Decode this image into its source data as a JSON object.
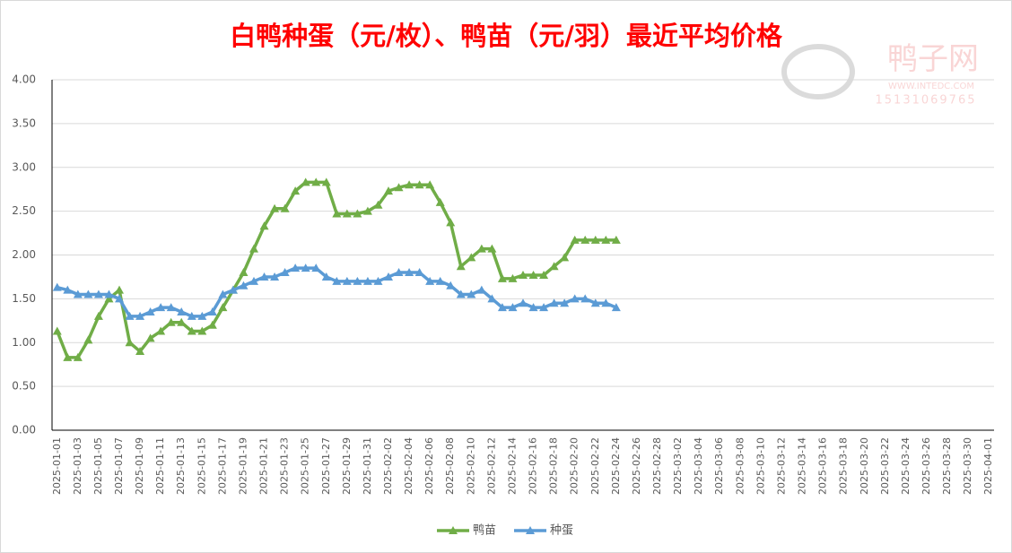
{
  "chart_data": {
    "type": "line",
    "title": "白鸭种蛋（元/枚）、鸭苗（元/羽）最近平均价格",
    "watermark": {
      "brand": "鸭子网",
      "site": "WWW.INTEDC.COM",
      "phone": "15131069765"
    },
    "categories": [
      "2025-01-01",
      null,
      "2025-01-03",
      null,
      "2025-01-05",
      null,
      "2025-01-07",
      null,
      "2025-01-09",
      null,
      "2025-01-11",
      null,
      "2025-01-13",
      null,
      "2025-01-15",
      null,
      "2025-01-17",
      null,
      "2025-01-19",
      null,
      "2025-01-21",
      null,
      "2025-01-23",
      null,
      "2025-01-25",
      null,
      "2025-01-27",
      null,
      "2025-01-29",
      null,
      "2025-01-31",
      null,
      "2025-02-02",
      null,
      "2025-02-04",
      null,
      "2025-02-06",
      null,
      "2025-02-08",
      null,
      "2025-02-10",
      null,
      "2025-02-12",
      null,
      "2025-02-14",
      null,
      "2025-02-16",
      null,
      "2025-02-18",
      null,
      "2025-02-20",
      null,
      "2025-02-22",
      null,
      "2025-02-24",
      null,
      "2025-02-26",
      null,
      "2025-02-28",
      null,
      "2025-03-02",
      null,
      "2025-03-04",
      null,
      "2025-03-06",
      null,
      "2025-03-08",
      null,
      "2025-03-10",
      null,
      "2025-03-12",
      null,
      "2025-03-14",
      null,
      "2025-03-16",
      null,
      "2025-03-18",
      null,
      "2025-03-20",
      null,
      "2025-03-22",
      null,
      "2025-03-24",
      null,
      "2025-03-26",
      null,
      "2025-03-28",
      null,
      "2025-03-30",
      null,
      "2025-04-01"
    ],
    "series": [
      {
        "name": "鸭苗",
        "color": "#70ad47",
        "values": [
          1.13,
          0.83,
          0.83,
          1.03,
          1.3,
          1.5,
          1.6,
          1.0,
          0.9,
          1.05,
          1.13,
          1.23,
          1.23,
          1.13,
          1.13,
          1.2,
          1.4,
          1.6,
          1.8,
          2.07,
          2.33,
          2.53,
          2.53,
          2.73,
          2.83,
          2.83,
          2.83,
          2.47,
          2.47,
          2.47,
          2.5,
          2.57,
          2.73,
          2.77,
          2.8,
          2.8,
          2.8,
          2.6,
          2.37,
          1.87,
          1.97,
          2.07,
          2.07,
          1.73,
          1.73,
          1.77,
          1.77,
          1.77,
          1.87,
          1.97,
          2.17,
          2.17,
          2.17,
          2.17,
          2.17,
          null,
          null,
          null,
          null,
          null,
          null,
          null,
          null,
          null,
          null,
          null,
          null,
          null,
          null,
          null,
          null,
          null,
          null,
          null,
          null,
          null,
          null,
          null,
          null,
          null,
          null,
          null,
          null,
          null,
          null,
          null,
          null,
          null,
          null,
          null,
          null
        ]
      },
      {
        "name": "种蛋",
        "color": "#5b9bd5",
        "values": [
          1.63,
          1.6,
          1.55,
          1.55,
          1.55,
          1.55,
          1.5,
          1.3,
          1.3,
          1.35,
          1.4,
          1.4,
          1.35,
          1.3,
          1.3,
          1.35,
          1.55,
          1.6,
          1.65,
          1.7,
          1.75,
          1.75,
          1.8,
          1.85,
          1.85,
          1.85,
          1.75,
          1.7,
          1.7,
          1.7,
          1.7,
          1.7,
          1.75,
          1.8,
          1.8,
          1.8,
          1.7,
          1.7,
          1.65,
          1.55,
          1.55,
          1.6,
          1.5,
          1.4,
          1.4,
          1.45,
          1.4,
          1.4,
          1.45,
          1.45,
          1.5,
          1.5,
          1.45,
          1.45,
          1.4,
          null,
          null,
          null,
          null,
          null,
          null,
          null,
          null,
          null,
          null,
          null,
          null,
          null,
          null,
          null,
          null,
          null,
          null,
          null,
          null,
          null,
          null,
          null,
          null,
          null,
          null,
          null,
          null,
          null,
          null,
          null,
          null,
          null,
          null,
          null,
          null
        ]
      }
    ],
    "ylim": [
      0,
      4
    ],
    "yticks": [
      {
        "value": 0,
        "label": "0.00"
      },
      {
        "value": 0.5,
        "label": "0.50"
      },
      {
        "value": 1,
        "label": "1.00"
      },
      {
        "value": 1.5,
        "label": "1.50"
      },
      {
        "value": 2,
        "label": "2.00"
      },
      {
        "value": 2.5,
        "label": "2.50"
      },
      {
        "value": 3,
        "label": "3.00"
      },
      {
        "value": 3.5,
        "label": "3.50"
      },
      {
        "value": 4,
        "label": "4.00"
      }
    ],
    "grid": true,
    "legend": "bottom"
  }
}
